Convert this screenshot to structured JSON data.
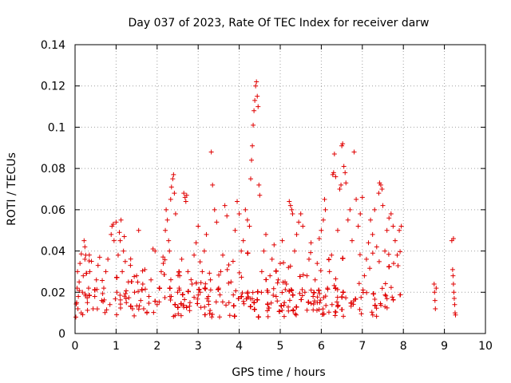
{
  "chart_data": {
    "type": "scatter",
    "title": "Day 037 of 2023, Rate Of TEC Index for receiver darw",
    "xlabel": "GPS time / hours",
    "ylabel": "ROTI / TECUs",
    "xlim": [
      0,
      10
    ],
    "ylim": [
      0,
      0.14
    ],
    "x_ticks": [
      0,
      1,
      2,
      3,
      4,
      5,
      6,
      7,
      8,
      9,
      10
    ],
    "x_tick_labels": [
      "0",
      "1",
      "2",
      "3",
      "4",
      "5",
      "6",
      "7",
      "8",
      "9",
      "10"
    ],
    "y_ticks": [
      0,
      0.02,
      0.04,
      0.06,
      0.08,
      0.1,
      0.12,
      0.14
    ],
    "y_tick_labels": [
      "0",
      "0.02",
      "0.04",
      "0.06",
      "0.08",
      "0.1",
      "0.12",
      "0.14"
    ],
    "grid": true,
    "legend": "none",
    "marker": "plus",
    "color": "#e00000",
    "series": [
      {
        "points": [
          [
            0.02,
            0.008
          ],
          [
            0.04,
            0.015
          ],
          [
            0.05,
            0.022
          ],
          [
            0.06,
            0.03
          ],
          [
            0.07,
            0.012
          ],
          [
            0.08,
            0.018
          ],
          [
            0.1,
            0.025
          ],
          [
            0.12,
            0.034
          ],
          [
            0.15,
            0.01
          ],
          [
            0.18,
            0.02
          ],
          [
            0.2,
            0.028
          ],
          [
            0.22,
            0.045
          ],
          [
            0.24,
            0.042
          ],
          [
            0.26,
            0.038
          ],
          [
            0.3,
            0.015
          ],
          [
            0.33,
            0.022
          ],
          [
            0.36,
            0.03
          ],
          [
            0.4,
            0.035
          ],
          [
            0.44,
            0.012
          ],
          [
            0.48,
            0.018
          ],
          [
            0.52,
            0.026
          ],
          [
            0.56,
            0.033
          ],
          [
            0.6,
            0.037
          ],
          [
            0.65,
            0.016
          ],
          [
            0.7,
            0.022
          ],
          [
            0.75,
            0.03
          ],
          [
            0.8,
            0.036
          ],
          [
            0.85,
            0.014
          ],
          [
            0.88,
            0.048
          ],
          [
            0.9,
            0.052
          ],
          [
            0.93,
            0.053
          ],
          [
            0.95,
            0.045
          ],
          [
            1.0,
            0.054
          ],
          [
            1.02,
            0.02
          ],
          [
            1.05,
            0.038
          ],
          [
            1.08,
            0.049
          ],
          [
            1.1,
            0.045
          ],
          [
            1.12,
            0.055
          ],
          [
            1.15,
            0.03
          ],
          [
            1.18,
            0.04
          ],
          [
            1.2,
            0.047
          ],
          [
            1.25,
            0.015
          ],
          [
            1.3,
            0.025
          ],
          [
            1.35,
            0.033
          ],
          [
            1.4,
            0.012
          ],
          [
            1.45,
            0.02
          ],
          [
            1.5,
            0.028
          ],
          [
            1.55,
            0.05
          ],
          [
            1.6,
            0.016
          ],
          [
            1.65,
            0.024
          ],
          [
            1.7,
            0.031
          ],
          [
            1.75,
            0.01
          ],
          [
            1.8,
            0.018
          ],
          [
            1.85,
            0.026
          ],
          [
            1.9,
            0.041
          ],
          [
            1.95,
            0.04
          ],
          [
            2.0,
            0.014
          ],
          [
            2.05,
            0.022
          ],
          [
            2.1,
            0.03
          ],
          [
            2.15,
            0.034
          ],
          [
            2.2,
            0.05
          ],
          [
            2.22,
            0.06
          ],
          [
            2.25,
            0.055
          ],
          [
            2.28,
            0.045
          ],
          [
            2.3,
            0.04
          ],
          [
            2.33,
            0.065
          ],
          [
            2.35,
            0.071
          ],
          [
            2.38,
            0.075
          ],
          [
            2.4,
            0.077
          ],
          [
            2.42,
            0.068
          ],
          [
            2.45,
            0.058
          ],
          [
            2.5,
            0.02
          ],
          [
            2.55,
            0.028
          ],
          [
            2.6,
            0.036
          ],
          [
            2.65,
            0.068
          ],
          [
            2.68,
            0.066
          ],
          [
            2.7,
            0.064
          ],
          [
            2.72,
            0.067
          ],
          [
            2.75,
            0.03
          ],
          [
            2.8,
            0.015
          ],
          [
            2.85,
            0.024
          ],
          [
            2.9,
            0.038
          ],
          [
            2.95,
            0.044
          ],
          [
            3.0,
            0.052
          ],
          [
            3.05,
            0.02
          ],
          [
            3.1,
            0.03
          ],
          [
            3.15,
            0.04
          ],
          [
            3.2,
            0.048
          ],
          [
            3.25,
            0.018
          ],
          [
            3.3,
            0.026
          ],
          [
            3.32,
            0.088
          ],
          [
            3.35,
            0.072
          ],
          [
            3.4,
            0.06
          ],
          [
            3.45,
            0.054
          ],
          [
            3.5,
            0.022
          ],
          [
            3.55,
            0.03
          ],
          [
            3.6,
            0.038
          ],
          [
            3.65,
            0.062
          ],
          [
            3.7,
            0.057
          ],
          [
            3.75,
            0.015
          ],
          [
            3.8,
            0.025
          ],
          [
            3.85,
            0.035
          ],
          [
            3.9,
            0.05
          ],
          [
            3.95,
            0.064
          ],
          [
            4.0,
            0.058
          ],
          [
            4.05,
            0.04
          ],
          [
            4.1,
            0.045
          ],
          [
            4.15,
            0.06
          ],
          [
            4.2,
            0.055
          ],
          [
            4.25,
            0.052
          ],
          [
            4.28,
            0.075
          ],
          [
            4.3,
            0.084
          ],
          [
            4.32,
            0.091
          ],
          [
            4.34,
            0.101
          ],
          [
            4.36,
            0.108
          ],
          [
            4.38,
            0.113
          ],
          [
            4.4,
            0.12
          ],
          [
            4.42,
            0.122
          ],
          [
            4.44,
            0.115
          ],
          [
            4.46,
            0.11
          ],
          [
            4.48,
            0.072
          ],
          [
            4.5,
            0.067
          ],
          [
            4.55,
            0.03
          ],
          [
            4.6,
            0.04
          ],
          [
            4.65,
            0.048
          ],
          [
            4.7,
            0.02
          ],
          [
            4.75,
            0.028
          ],
          [
            4.8,
            0.036
          ],
          [
            4.85,
            0.043
          ],
          [
            4.9,
            0.018
          ],
          [
            4.95,
            0.026
          ],
          [
            5.0,
            0.034
          ],
          [
            5.05,
            0.045
          ],
          [
            5.1,
            0.015
          ],
          [
            5.15,
            0.024
          ],
          [
            5.2,
            0.032
          ],
          [
            5.22,
            0.064
          ],
          [
            5.25,
            0.062
          ],
          [
            5.28,
            0.06
          ],
          [
            5.3,
            0.058
          ],
          [
            5.35,
            0.04
          ],
          [
            5.4,
            0.048
          ],
          [
            5.45,
            0.054
          ],
          [
            5.5,
            0.058
          ],
          [
            5.55,
            0.052
          ],
          [
            5.6,
            0.02
          ],
          [
            5.65,
            0.028
          ],
          [
            5.7,
            0.036
          ],
          [
            5.75,
            0.044
          ],
          [
            5.8,
            0.018
          ],
          [
            5.85,
            0.026
          ],
          [
            5.9,
            0.034
          ],
          [
            5.95,
            0.046
          ],
          [
            6.0,
            0.05
          ],
          [
            6.05,
            0.055
          ],
          [
            6.08,
            0.065
          ],
          [
            6.1,
            0.06
          ],
          [
            6.15,
            0.022
          ],
          [
            6.2,
            0.03
          ],
          [
            6.25,
            0.038
          ],
          [
            6.28,
            0.077
          ],
          [
            6.3,
            0.078
          ],
          [
            6.32,
            0.087
          ],
          [
            6.35,
            0.076
          ],
          [
            6.4,
            0.05
          ],
          [
            6.45,
            0.07
          ],
          [
            6.48,
            0.072
          ],
          [
            6.5,
            0.091
          ],
          [
            6.52,
            0.092
          ],
          [
            6.55,
            0.081
          ],
          [
            6.58,
            0.078
          ],
          [
            6.6,
            0.073
          ],
          [
            6.65,
            0.055
          ],
          [
            6.7,
            0.06
          ],
          [
            6.75,
            0.045
          ],
          [
            6.8,
            0.088
          ],
          [
            6.85,
            0.065
          ],
          [
            6.9,
            0.052
          ],
          [
            6.95,
            0.058
          ],
          [
            7.0,
            0.066
          ],
          [
            7.05,
            0.028
          ],
          [
            7.1,
            0.036
          ],
          [
            7.15,
            0.044
          ],
          [
            7.2,
            0.055
          ],
          [
            7.25,
            0.048
          ],
          [
            7.3,
            0.06
          ],
          [
            7.35,
            0.042
          ],
          [
            7.4,
            0.068
          ],
          [
            7.42,
            0.073
          ],
          [
            7.45,
            0.072
          ],
          [
            7.48,
            0.07
          ],
          [
            7.5,
            0.062
          ],
          [
            7.55,
            0.04
          ],
          [
            7.6,
            0.05
          ],
          [
            7.65,
            0.056
          ],
          [
            7.7,
            0.058
          ],
          [
            7.75,
            0.052
          ],
          [
            7.8,
            0.045
          ],
          [
            7.85,
            0.038
          ],
          [
            7.9,
            0.05
          ],
          [
            7.95,
            0.052
          ],
          [
            8.75,
            0.024
          ],
          [
            8.76,
            0.02
          ],
          [
            8.77,
            0.016
          ],
          [
            8.78,
            0.012
          ],
          [
            8.8,
            0.022
          ],
          [
            9.18,
            0.045
          ],
          [
            9.2,
            0.031
          ],
          [
            9.21,
            0.028
          ],
          [
            9.22,
            0.024
          ],
          [
            9.23,
            0.02
          ],
          [
            9.24,
            0.017
          ],
          [
            9.25,
            0.014
          ],
          [
            9.26,
            0.01
          ],
          [
            9.27,
            0.009
          ],
          [
            9.22,
            0.046
          ]
        ]
      }
    ],
    "density_note_free": true,
    "dense_band": {
      "x_range": [
        0,
        7.95
      ],
      "y_range": [
        0.005,
        0.035
      ],
      "typical": 0.015
    }
  }
}
